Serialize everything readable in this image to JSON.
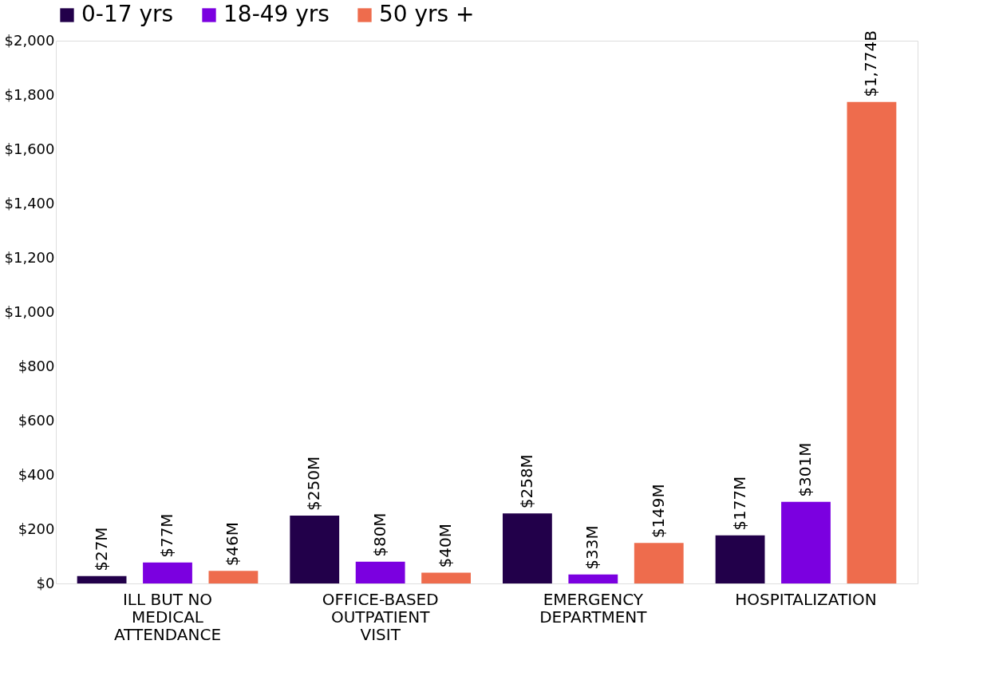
{
  "chart_data": {
    "type": "bar",
    "categories": [
      "ILL BUT NO MEDICAL ATTENDANCE",
      "OFFICE-BASED OUTPATIENT VISIT",
      "EMERGENCY DEPARTMENT",
      "HOSPITALIZATION"
    ],
    "series": [
      {
        "name": "0-17 yrs",
        "color": "#22004a",
        "values": [
          27,
          250,
          258,
          177
        ],
        "value_labels": [
          "$27M",
          "$250M",
          "$258M",
          "$177M"
        ]
      },
      {
        "name": "18-49 yrs",
        "color": "#7b00e0",
        "values": [
          77,
          80,
          33,
          301
        ],
        "value_labels": [
          "$77M",
          "$80M",
          "$33M",
          "$301M"
        ]
      },
      {
        "name": "50 yrs +",
        "color": "#ee6c4d",
        "values": [
          46,
          40,
          149,
          1774
        ],
        "value_labels": [
          "$46M",
          "$40M",
          "$149M",
          "$1,774B"
        ]
      }
    ],
    "ylim": [
      0,
      2000
    ],
    "yticks": [
      {
        "value": 0,
        "label": "$0"
      },
      {
        "value": 200,
        "label": "$200"
      },
      {
        "value": 400,
        "label": "$400"
      },
      {
        "value": 600,
        "label": "$600"
      },
      {
        "value": 800,
        "label": "$800"
      },
      {
        "value": 1000,
        "label": "$1,000"
      },
      {
        "value": 1200,
        "label": "$1,200"
      },
      {
        "value": 1400,
        "label": "$1,400"
      },
      {
        "value": 1600,
        "label": "$1,600"
      },
      {
        "value": 1800,
        "label": "$1,800"
      },
      {
        "value": 2000,
        "label": "$2,000"
      }
    ],
    "grid": false,
    "legend": "top"
  }
}
